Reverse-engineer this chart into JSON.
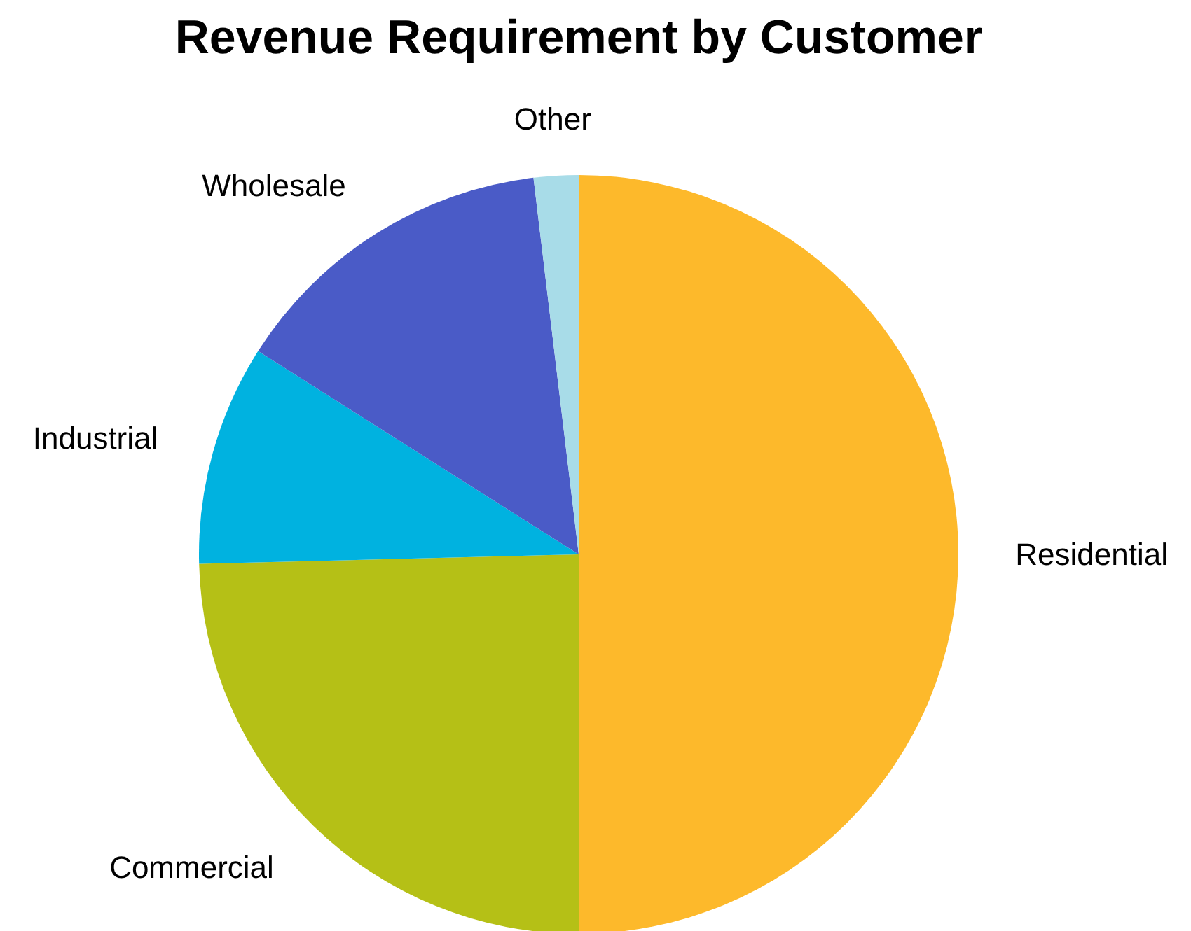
{
  "chart_data": {
    "type": "pie",
    "title": "Revenue Requirement by Customer",
    "categories": [
      "Residential",
      "Commercial",
      "Industrial",
      "Wholesale",
      "Other"
    ],
    "values": [
      50,
      24.6,
      9.4,
      14.1,
      1.9
    ],
    "colors": [
      "#fdb92b",
      "#b5c016",
      "#00b2e0",
      "#4a5bc7",
      "#a8dce8"
    ]
  }
}
